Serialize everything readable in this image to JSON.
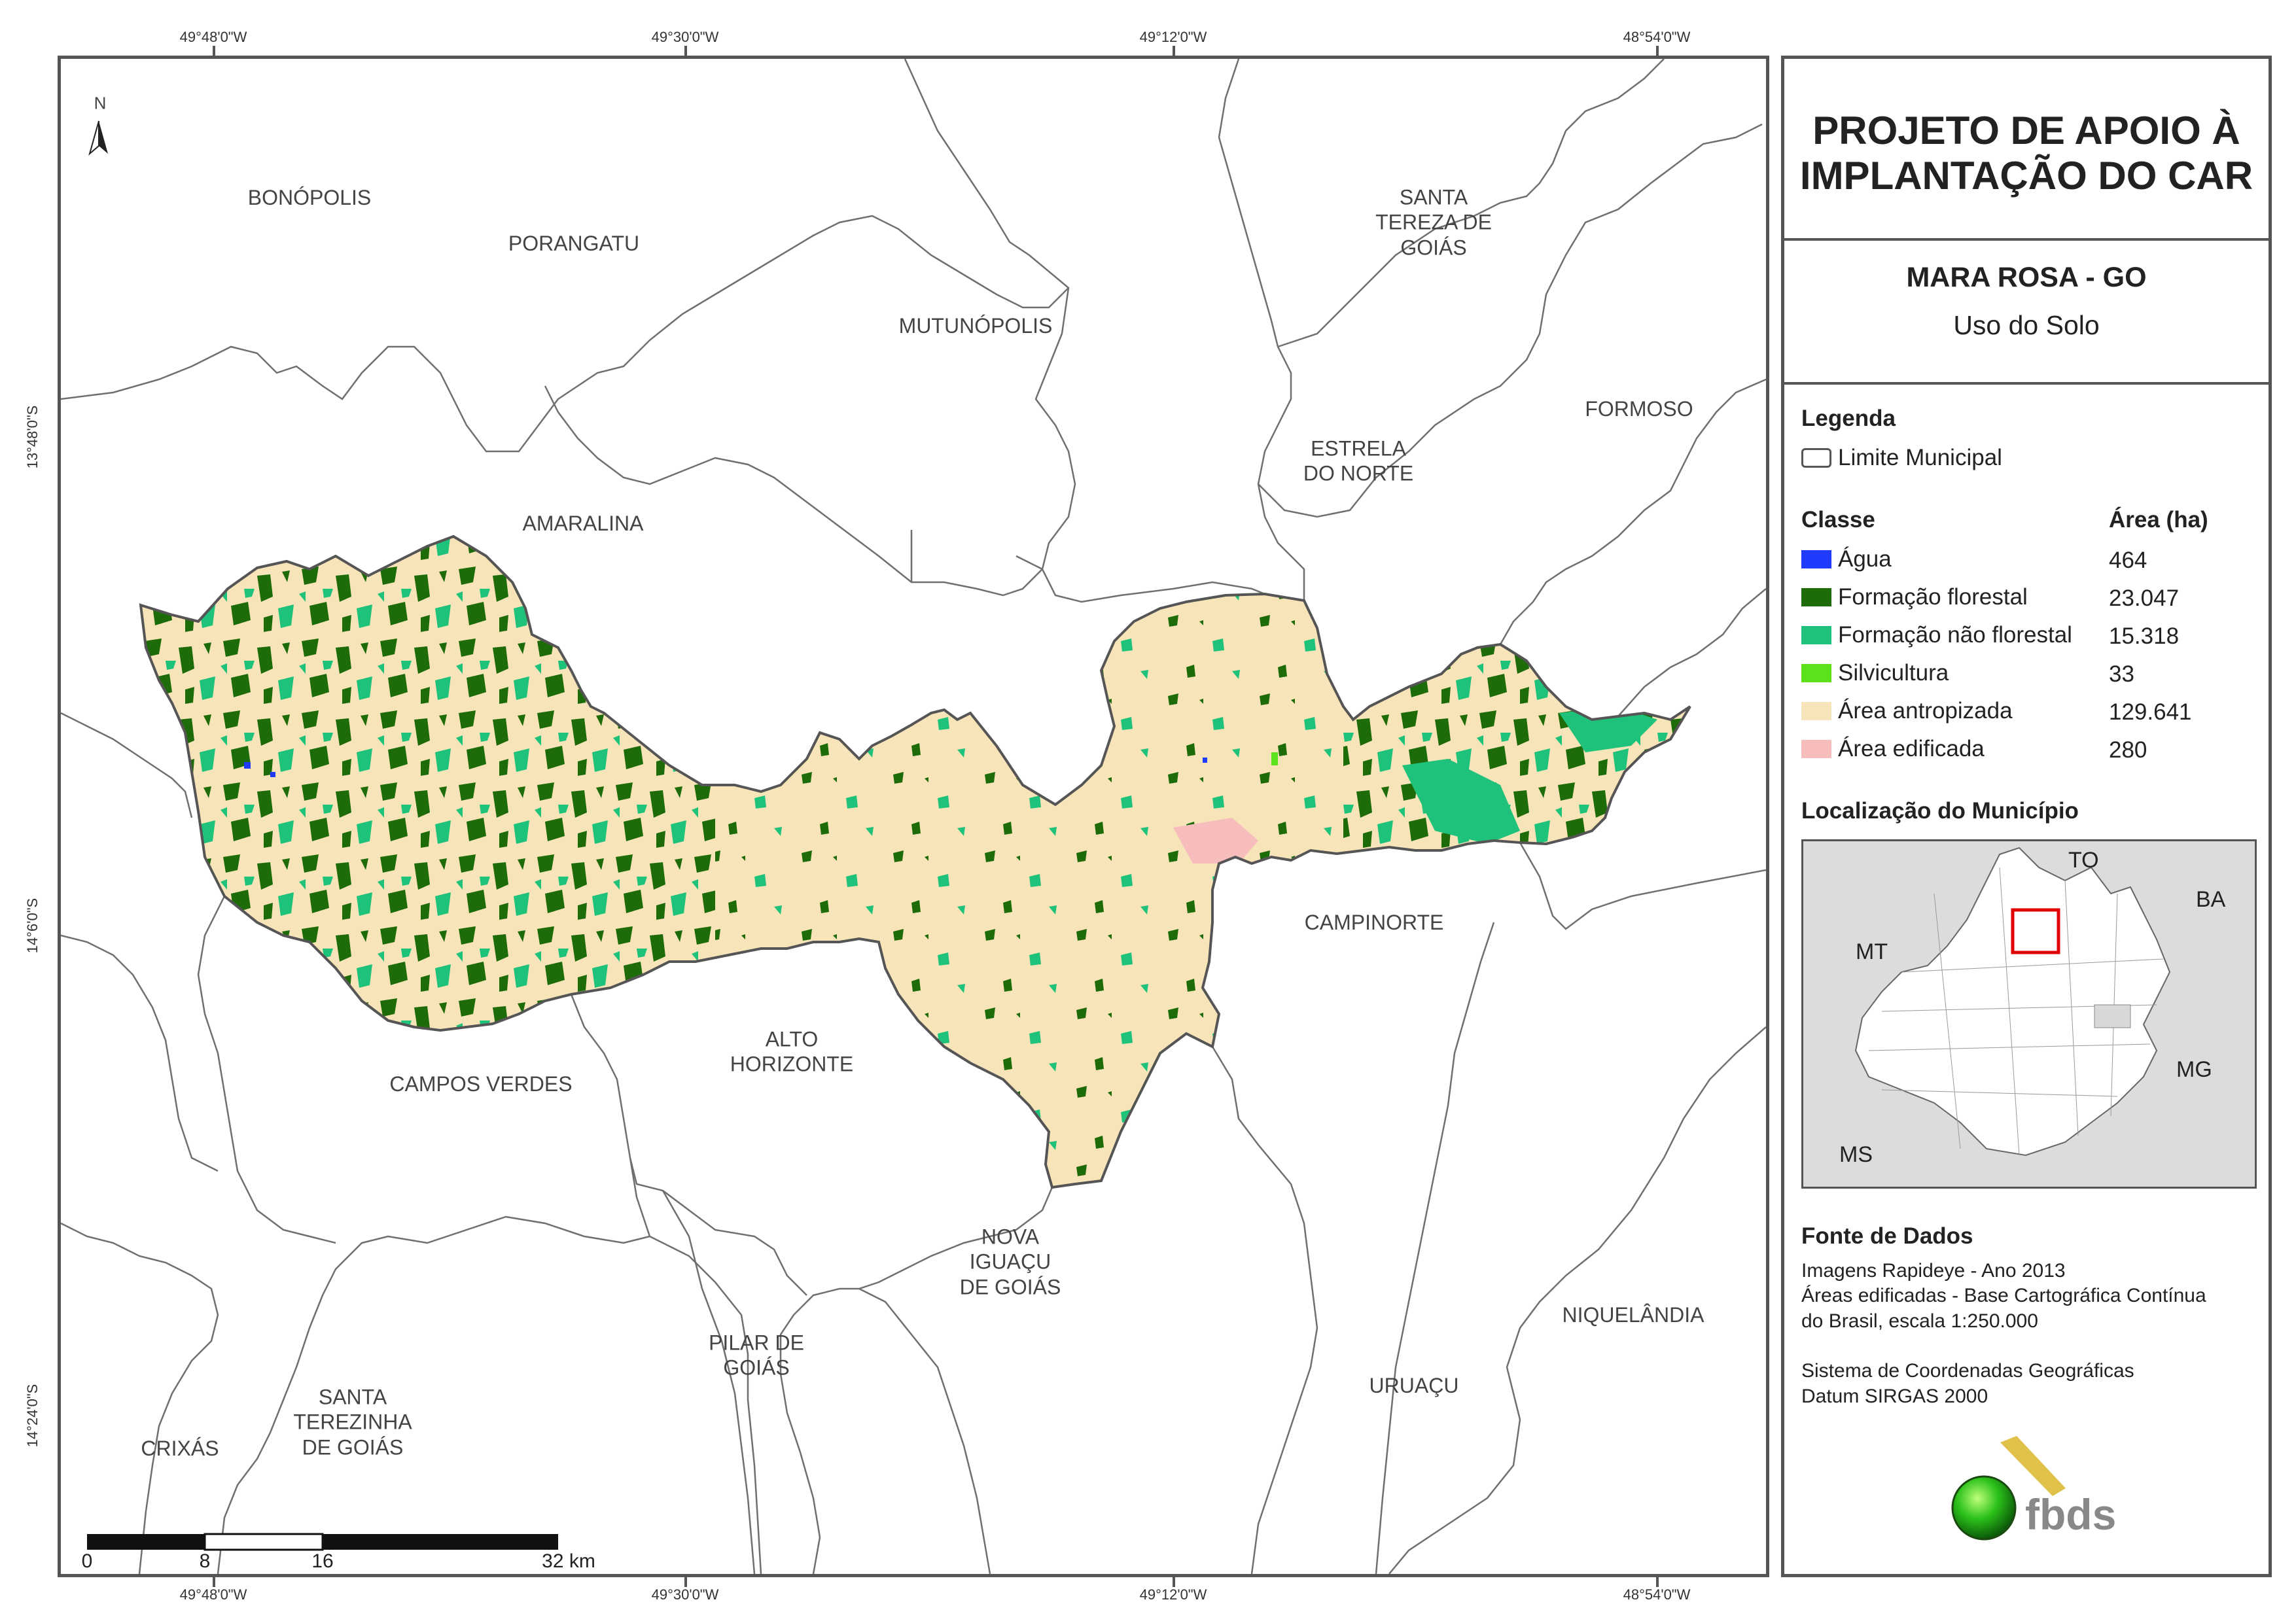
{
  "coords": {
    "top": [
      "49°48'0\"W",
      "49°30'0\"W",
      "49°12'0\"W",
      "48°54'0\"W"
    ],
    "bottom": [
      "49°48'0\"W",
      "49°30'0\"W",
      "49°12'0\"W",
      "48°54'0\"W"
    ],
    "left": [
      "13°48'0\"S",
      "14°6'0\"S",
      "14°24'0\"S"
    ]
  },
  "north_arrow": "N",
  "municipalities": {
    "bonopolis": "BONÓPOLIS",
    "porangatu": "PORANGATU",
    "mutunopolis": "MUTUNÓPOLIS",
    "santa_tereza_1": "SANTA",
    "santa_tereza_2": "TEREZA DE",
    "santa_tereza_3": "GOIÁS",
    "formoso": "FORMOSO",
    "estrela_1": "ESTRELA",
    "estrela_2": "DO NORTE",
    "amaralina": "AMARALINA",
    "campinorte": "CAMPINORTE",
    "alto_1": "ALTO",
    "alto_2": "HORIZONTE",
    "campos_verdes": "CAMPOS VERDES",
    "nova_1": "NOVA",
    "nova_2": "IGUAÇU",
    "nova_3": "DE GOIÁS",
    "pilar_1": "PILAR DE",
    "pilar_2": "GOIÁS",
    "niquelandia": "NIQUELÂNDIA",
    "uruacu": "URUAÇU",
    "santa_terezinha_1": "SANTA",
    "santa_terezinha_2": "TEREZINHA",
    "santa_terezinha_3": "DE GOIÁS",
    "crixas": "CRIXÁS"
  },
  "scale_bar": {
    "labels": [
      "0",
      "8",
      "16",
      "32 km"
    ]
  },
  "panel": {
    "title_line1": "PROJETO DE APOIO À",
    "title_line2": "IMPLANTAÇÃO DO CAR",
    "municipality": "MARA ROSA - GO",
    "subtitle": "Uso do Solo",
    "legend_heading": "Legenda",
    "boundary_label": "Limite Municipal",
    "class_heading": "Classe",
    "area_heading": "Área (ha)",
    "classes": [
      {
        "name": "Água",
        "area": "464",
        "color": "#1f3bff"
      },
      {
        "name": "Formação florestal",
        "area": "23.047",
        "color": "#1e6b0a"
      },
      {
        "name": "Formação não florestal",
        "area": "15.318",
        "color": "#1ec27a"
      },
      {
        "name": "Silvicultura",
        "area": "33",
        "color": "#5ce11a"
      },
      {
        "name": "Área antropizada",
        "area": "129.641",
        "color": "#f7e4b9"
      },
      {
        "name": "Área edificada",
        "area": "280",
        "color": "#f7bcbc"
      }
    ],
    "location_heading": "Localização do Município",
    "inset_labels": {
      "to": "TO",
      "ba": "BA",
      "mt": "MT",
      "mg": "MG",
      "ms": "MS"
    },
    "source_heading": "Fonte de Dados",
    "source_lines": [
      "Imagens Rapideye - Ano 2013",
      "Áreas edificadas - Base Cartográfica Contínua",
      "do Brasil, escala 1:250.000",
      "",
      "Sistema de Coordenadas Geográficas",
      "Datum SIRGAS 2000"
    ],
    "logo_text": "fbds"
  }
}
